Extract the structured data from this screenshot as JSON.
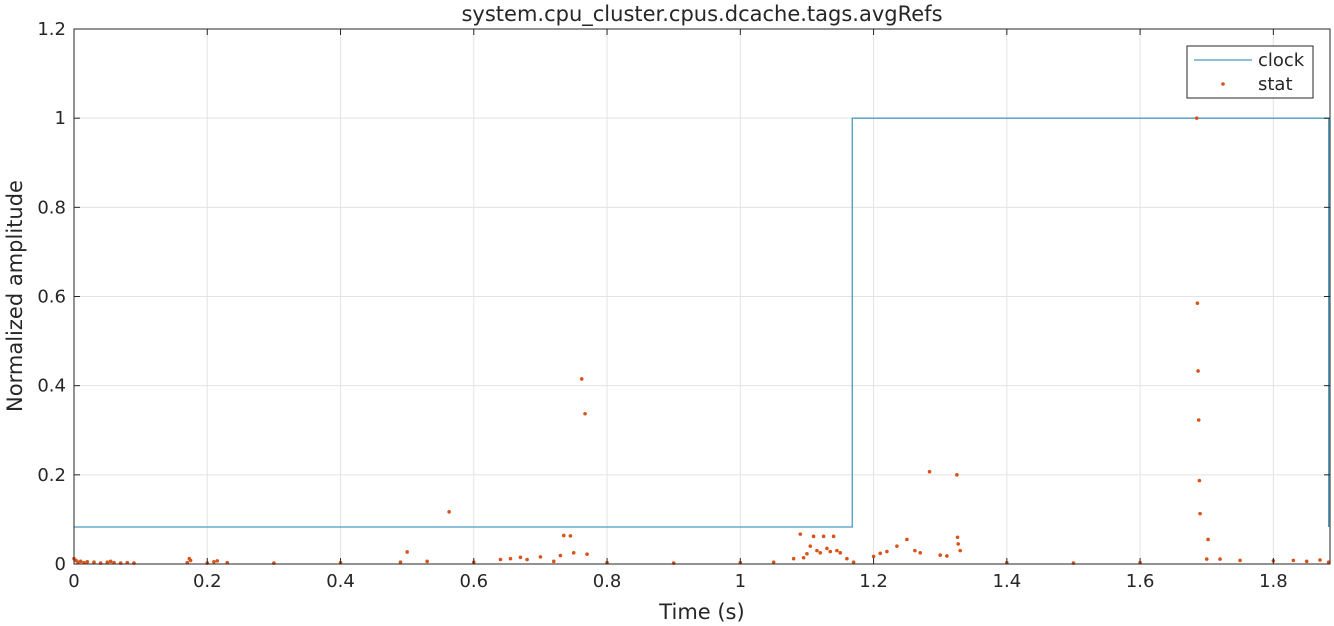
{
  "chart_data": {
    "type": "line",
    "title": "system.cpu_cluster.cpus.dcache.tags.avgRefs",
    "xlabel": "Time (s)",
    "ylabel": "Normalized amplitude",
    "xlim": [
      0,
      1.885
    ],
    "ylim": [
      0,
      1.2
    ],
    "grid": true,
    "legend_position": "top-right",
    "x_ticks": [
      0,
      0.2,
      0.4,
      0.6,
      0.8,
      1,
      1.2,
      1.4,
      1.6,
      1.8
    ],
    "x_tick_labels": [
      "0",
      "0.2",
      "0.4",
      "0.6",
      "0.8",
      "1",
      "1.2",
      "1.4",
      "1.6",
      "1.8"
    ],
    "y_ticks": [
      0,
      0.2,
      0.4,
      0.6,
      0.8,
      1,
      1.2
    ],
    "y_tick_labels": [
      "0",
      "0.2",
      "0.4",
      "0.6",
      "0.8",
      "1",
      "1.2"
    ],
    "series": [
      {
        "name": "clock",
        "style": "line",
        "color": "#4a9bc4",
        "x": [
          0,
          1.168,
          1.168,
          1.883,
          1.883
        ],
        "y": [
          0.083,
          0.083,
          1.0,
          1.0,
          0.083
        ]
      },
      {
        "name": "stat",
        "style": "markers",
        "color": "#d95319",
        "x": [
          0.0,
          0.003,
          0.006,
          0.01,
          0.015,
          0.02,
          0.03,
          0.04,
          0.05,
          0.055,
          0.06,
          0.07,
          0.08,
          0.09,
          0.17,
          0.173,
          0.175,
          0.2,
          0.21,
          0.215,
          0.23,
          0.3,
          0.4,
          0.49,
          0.5,
          0.53,
          0.563,
          0.6,
          0.64,
          0.655,
          0.67,
          0.68,
          0.7,
          0.72,
          0.73,
          0.735,
          0.745,
          0.75,
          0.762,
          0.767,
          0.77,
          0.8,
          0.9,
          1.0,
          1.05,
          1.08,
          1.09,
          1.095,
          1.1,
          1.105,
          1.11,
          1.115,
          1.12,
          1.125,
          1.13,
          1.135,
          1.14,
          1.145,
          1.15,
          1.16,
          1.17,
          1.2,
          1.21,
          1.22,
          1.235,
          1.25,
          1.262,
          1.27,
          1.284,
          1.3,
          1.31,
          1.325,
          1.326,
          1.327,
          1.33,
          1.4,
          1.5,
          1.6,
          1.685,
          1.686,
          1.687,
          1.688,
          1.689,
          1.69,
          1.7,
          1.702,
          1.72,
          1.75,
          1.8,
          1.83,
          1.85,
          1.87,
          1.883
        ],
        "y": [
          0.012,
          0.008,
          0.004,
          0.006,
          0.003,
          0.005,
          0.004,
          0.002,
          0.004,
          0.006,
          0.003,
          0.002,
          0.003,
          0.002,
          0.003,
          0.012,
          0.008,
          0.002,
          0.005,
          0.007,
          0.003,
          0.002,
          0.003,
          0.004,
          0.027,
          0.006,
          0.117,
          0.004,
          0.01,
          0.012,
          0.015,
          0.01,
          0.016,
          0.006,
          0.019,
          0.064,
          0.063,
          0.025,
          0.415,
          0.337,
          0.022,
          0.003,
          0.002,
          0.003,
          0.004,
          0.012,
          0.067,
          0.014,
          0.023,
          0.04,
          0.062,
          0.03,
          0.025,
          0.062,
          0.035,
          0.028,
          0.062,
          0.03,
          0.025,
          0.012,
          0.004,
          0.017,
          0.024,
          0.028,
          0.04,
          0.055,
          0.03,
          0.025,
          0.207,
          0.02,
          0.018,
          0.2,
          0.06,
          0.045,
          0.03,
          0.003,
          0.002,
          0.003,
          1.0,
          0.585,
          0.433,
          0.323,
          0.187,
          0.113,
          0.011,
          0.055,
          0.011,
          0.008,
          0.007,
          0.008,
          0.006,
          0.009,
          0.004
        ]
      }
    ]
  }
}
